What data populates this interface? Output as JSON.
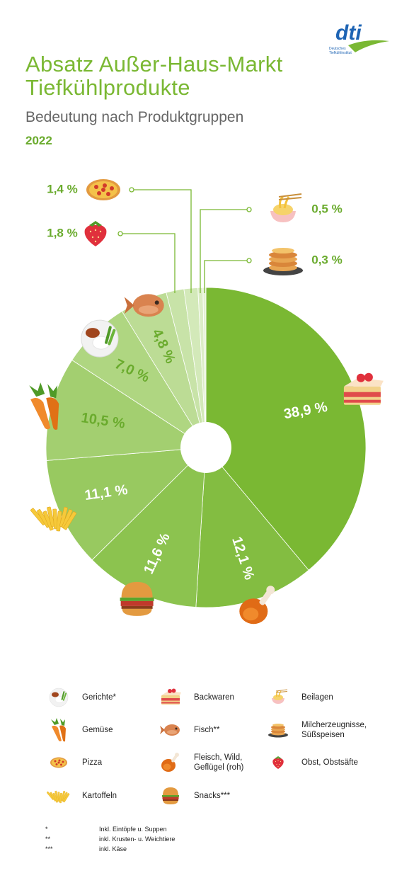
{
  "logo": {
    "mark": "dti",
    "line1": "Deutsches",
    "line2": "Tiefkühlinstitut"
  },
  "header": {
    "title_line1": "Absatz Außer-Haus-Markt",
    "title_line2": "Tiefkühlprodukte",
    "subtitle": "Bedeutung nach Produktgruppen",
    "year": "2022"
  },
  "chart_data": {
    "type": "pie",
    "style": "donut",
    "slices": [
      {
        "category": "Backwaren",
        "value": 38.9,
        "label": "38,9 %",
        "color": "#7ab833",
        "icon": "cake-icon"
      },
      {
        "category": "Fleisch, Wild, Geflügel (roh)",
        "value": 12.1,
        "label": "12,1 %",
        "color": "#83bd41",
        "icon": "chicken-leg-icon"
      },
      {
        "category": "Snacks***",
        "value": 11.6,
        "label": "11,6 %",
        "color": "#8cc34f",
        "icon": "burger-icon"
      },
      {
        "category": "Kartoffeln",
        "value": 11.1,
        "label": "11,1 %",
        "color": "#98c960",
        "icon": "fries-icon"
      },
      {
        "category": "Gemüse",
        "value": 10.5,
        "label": "10,5 %",
        "color": "#a3cf70",
        "icon": "carrot-icon"
      },
      {
        "category": "Gerichte*",
        "value": 7.0,
        "label": "7,0 %",
        "color": "#afd681",
        "icon": "meal-plate-icon"
      },
      {
        "category": "Fisch**",
        "value": 4.8,
        "label": "4,8 %",
        "color": "#bcdc95",
        "icon": "fish-icon"
      },
      {
        "category": "Obst, Obstsäfte",
        "value": 1.8,
        "label": "1,8 %",
        "color": "#c8e3a8",
        "icon": "strawberry-icon"
      },
      {
        "category": "Pizza",
        "value": 1.4,
        "label": "1,4 %",
        "color": "#d3e9b9",
        "icon": "pizza-icon"
      },
      {
        "category": "Beilagen",
        "value": 0.5,
        "label": "0,5 %",
        "color": "#dcedc7",
        "icon": "noodles-icon"
      },
      {
        "category": "Milcherzeugnisse, Süßspeisen",
        "value": 0.3,
        "label": "0,3 %",
        "color": "#e4f1d3",
        "icon": "pancakes-icon"
      }
    ]
  },
  "legend": [
    {
      "label": "Gerichte*",
      "icon": "meal-plate-icon"
    },
    {
      "label": "Backwaren",
      "icon": "cake-icon"
    },
    {
      "label": "Beilagen",
      "icon": "noodles-icon"
    },
    {
      "label": "Gemüse",
      "icon": "carrot-icon"
    },
    {
      "label": "Fisch**",
      "icon": "fish-icon"
    },
    {
      "label": "Milcherzeugnisse,\nSüßspeisen",
      "icon": "pancakes-icon"
    },
    {
      "label": "Pizza",
      "icon": "pizza-icon"
    },
    {
      "label": "Fleisch, Wild,\nGeflügel (roh)",
      "icon": "chicken-leg-icon"
    },
    {
      "label": "Obst, Obstsäfte",
      "icon": "strawberry-icon"
    },
    {
      "label": "Kartoffeln",
      "icon": "fries-icon"
    },
    {
      "label": "Snacks***",
      "icon": "burger-icon"
    }
  ],
  "footnotes": [
    {
      "mark": "*",
      "text": "Inkl. Eintöpfe u. Suppen"
    },
    {
      "mark": "**",
      "text": "inkl. Krusten- u. Weichtiere"
    },
    {
      "mark": "***",
      "text": "inkl. Käse"
    }
  ]
}
